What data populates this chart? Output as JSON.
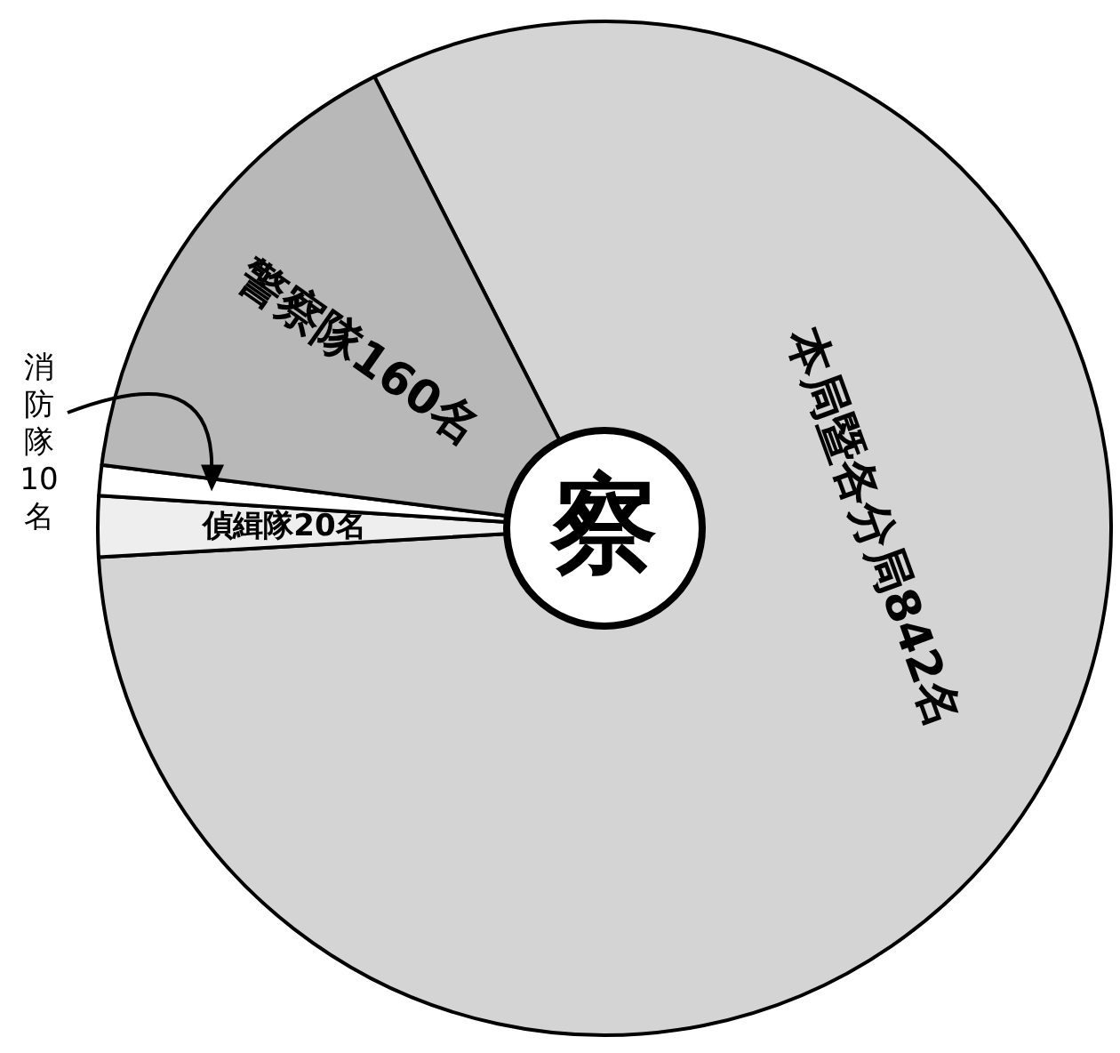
{
  "chart_data": {
    "type": "pie",
    "title": "察",
    "categories": [
      "本局暨各分局",
      "偵緝隊",
      "消防隊",
      "警察隊"
    ],
    "values": [
      842,
      20,
      10,
      160
    ],
    "value_labels": [
      "842名",
      "20名",
      "10名",
      "160名"
    ],
    "colors": [
      "#d4d4d4",
      "#eeeeee",
      "#ffffff",
      "#b8b8b8"
    ]
  }
}
